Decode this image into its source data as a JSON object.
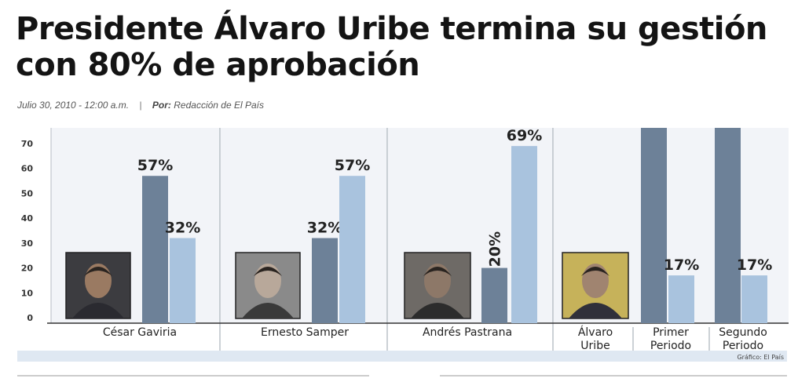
{
  "article": {
    "title": "Presidente Álvaro Uribe termina su gestión con 80% de aprobación",
    "date": "Julio 30, 2010 - 12:00 a.m.",
    "separator": "|",
    "by_label": "Por:",
    "author": "Redacción de El País"
  },
  "chart_data": {
    "type": "bar",
    "title": "",
    "xlabel": "",
    "ylabel": "",
    "ylim": [
      0,
      75
    ],
    "yticks": [
      0,
      10,
      20,
      30,
      40,
      50,
      60,
      70
    ],
    "grid": false,
    "legend": "none",
    "credit": "Gráfico: El País",
    "colors": {
      "dark": "#6d8198",
      "light": "#a9c3de",
      "bg": "#f2f4f8"
    },
    "groups": [
      {
        "name": "César Gaviria",
        "photo": "photo-gaviria",
        "bars": [
          {
            "value": 57,
            "label": "57%",
            "color": "dark"
          },
          {
            "value": 32,
            "label": "32%",
            "color": "light"
          }
        ]
      },
      {
        "name": "Ernesto Samper",
        "photo": "photo-samper",
        "bars": [
          {
            "value": 32,
            "label": "32%",
            "color": "dark"
          },
          {
            "value": 57,
            "label": "57%",
            "color": "light"
          }
        ]
      },
      {
        "name": "Andrés Pastrana",
        "photo": "photo-pastrana",
        "bars": [
          {
            "value": 20,
            "label": "20%",
            "color": "dark",
            "rotate": true
          },
          {
            "value": 69,
            "label": "69%",
            "color": "light"
          }
        ]
      },
      {
        "name": "Álvaro Uribe",
        "photo": "photo-uribe",
        "bars": []
      },
      {
        "name": "Primer Periodo",
        "bars": [
          {
            "value": 80,
            "label": "",
            "color": "dark"
          },
          {
            "value": 17,
            "label": "17%",
            "color": "light"
          }
        ]
      },
      {
        "name": "Segundo Periodo",
        "bars": [
          {
            "value": 80,
            "label": "",
            "color": "dark"
          },
          {
            "value": 17,
            "label": "17%",
            "color": "light"
          }
        ]
      }
    ]
  }
}
